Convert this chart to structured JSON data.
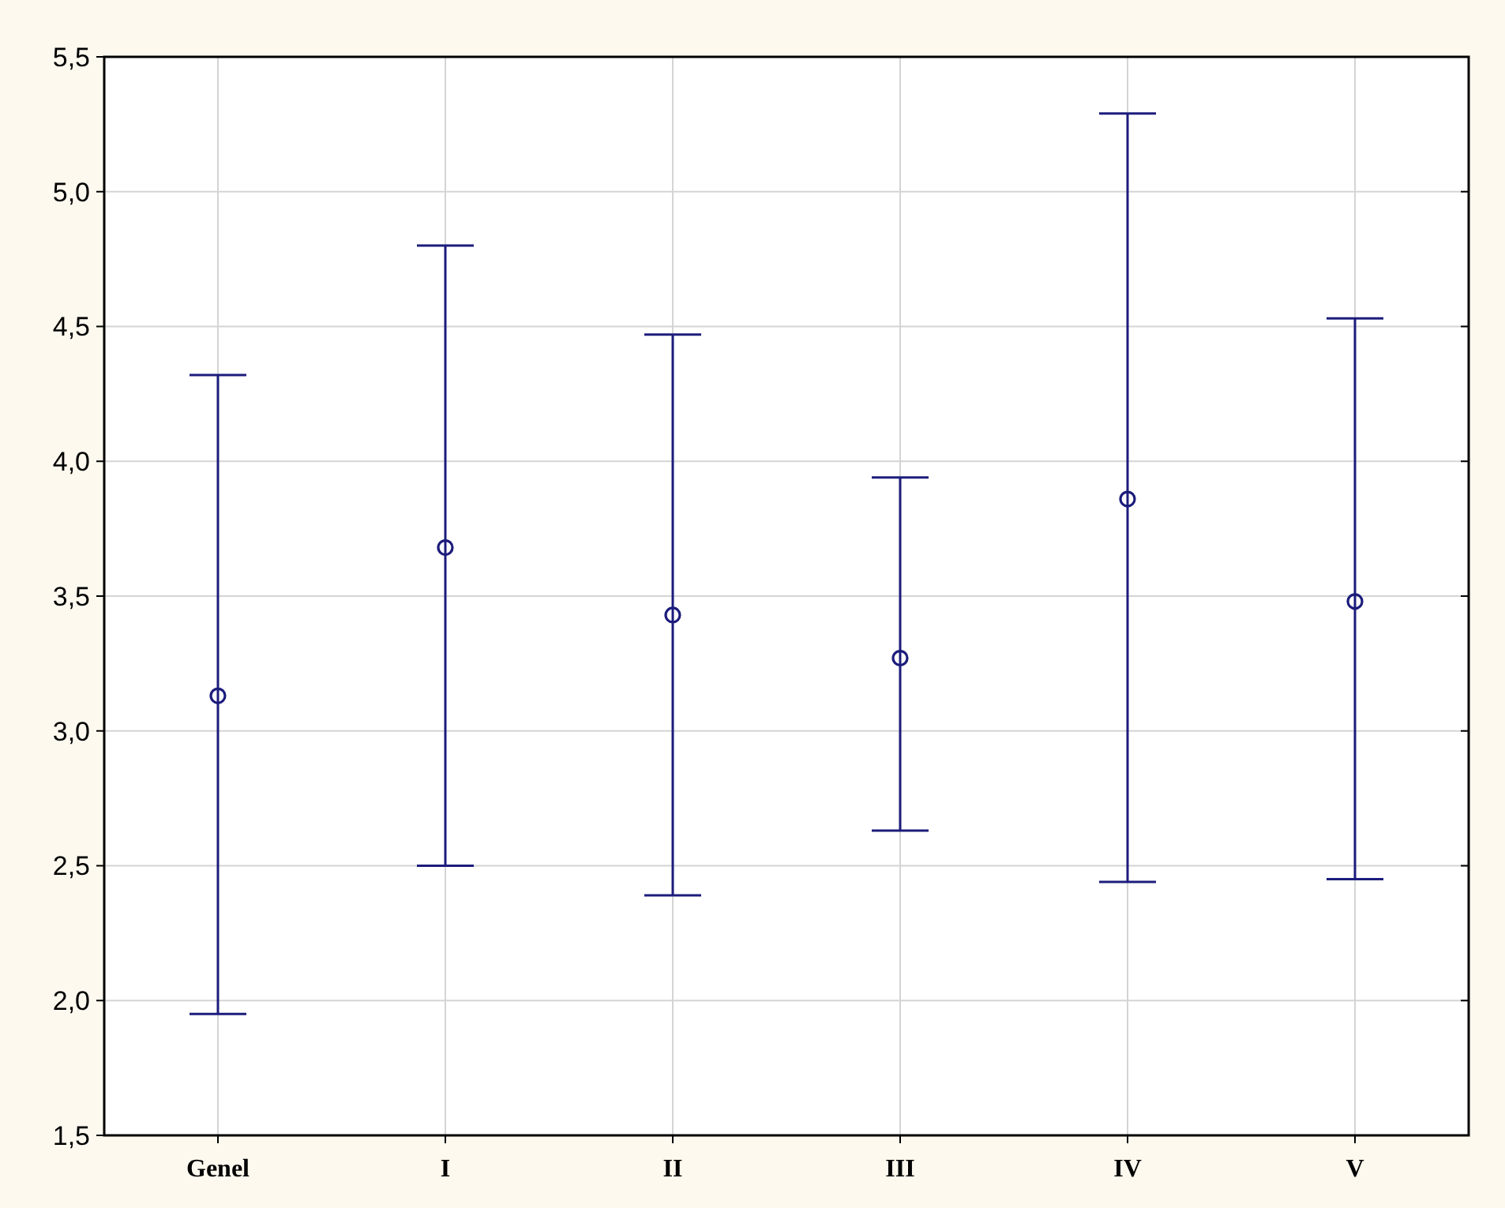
{
  "chart_data": {
    "type": "scatter",
    "categories": [
      "Genel",
      "I",
      "II",
      "III",
      "IV",
      "V"
    ],
    "series": [
      {
        "color": "#1c1c7c",
        "values": [
          3.13,
          3.68,
          3.43,
          3.27,
          3.86,
          3.48
        ],
        "errors": [
          [
            1.95,
            4.32
          ],
          [
            2.5,
            4.8
          ],
          [
            2.39,
            4.47
          ],
          [
            2.63,
            3.94
          ],
          [
            2.44,
            5.29
          ],
          [
            2.45,
            4.53
          ]
        ]
      }
    ],
    "ylim": [
      1.5,
      5.5
    ],
    "yticks": [
      {
        "value": 1.5,
        "label": "1,5"
      },
      {
        "value": 2,
        "label": "2,0"
      },
      {
        "value": 2.5,
        "label": "2,5"
      },
      {
        "value": 3,
        "label": "3,0"
      },
      {
        "value": 3.5,
        "label": "3,5"
      },
      {
        "value": 4,
        "label": "4,0"
      },
      {
        "value": 4.5,
        "label": "4,5"
      },
      {
        "value": 5,
        "label": "5,0"
      },
      {
        "value": 5.5,
        "label": "5,5"
      }
    ],
    "grid": true,
    "marker": "circle"
  }
}
